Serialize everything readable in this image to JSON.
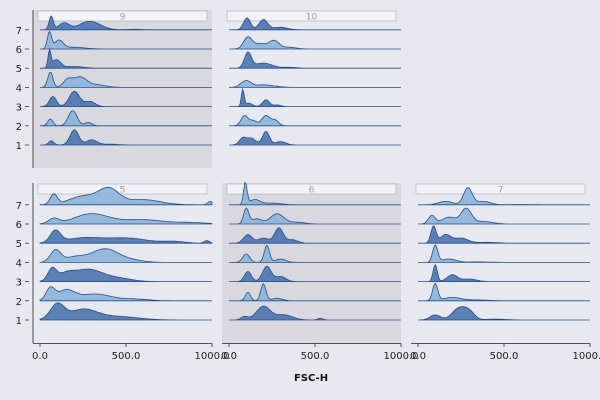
{
  "chart_data": {
    "type": "ridgeline",
    "title": "",
    "xlabel": "FSC-H",
    "ylabel": "",
    "xlim": [
      0,
      1000
    ],
    "x_ticks": [
      "0.0",
      "500.0",
      "1000.0"
    ],
    "y_categories": [
      "1",
      "2",
      "3",
      "4",
      "5",
      "6",
      "7"
    ],
    "fill_colors": {
      "dark": "#4a74b4",
      "light": "#8ab4dc",
      "line": "#1f4e8c"
    },
    "panel_background": {
      "shaded": "#d8d8de",
      "plain": "#e8e8f0"
    },
    "panels": [
      {
        "label": "9",
        "shaded": true,
        "ridges": [
          {
            "row": "1",
            "tone": "dark",
            "peaks": [
              [
                65,
                15,
                0.25
              ],
              [
                200,
                25,
                0.9
              ],
              [
                300,
                30,
                0.3
              ],
              [
                400,
                50,
                0.05
              ]
            ]
          },
          {
            "row": "2",
            "tone": "light",
            "peaks": [
              [
                60,
                15,
                0.4
              ],
              [
                190,
                25,
                0.9
              ],
              [
                280,
                20,
                0.2
              ]
            ]
          },
          {
            "row": "3",
            "tone": "dark",
            "peaks": [
              [
                75,
                20,
                0.6
              ],
              [
                200,
                30,
                0.9
              ],
              [
                290,
                30,
                0.3
              ]
            ]
          },
          {
            "row": "4",
            "tone": "light",
            "peaks": [
              [
                60,
                15,
                0.9
              ],
              [
                160,
                25,
                0.4
              ],
              [
                230,
                40,
                0.6
              ],
              [
                330,
                50,
                0.15
              ]
            ]
          },
          {
            "row": "5",
            "tone": "dark",
            "peaks": [
              [
                55,
                8,
                1.0
              ],
              [
                95,
                25,
                0.5
              ],
              [
                200,
                50,
                0.1
              ]
            ]
          },
          {
            "row": "6",
            "tone": "light",
            "peaks": [
              [
                55,
                12,
                1.0
              ],
              [
                110,
                25,
                0.5
              ],
              [
                200,
                60,
                0.1
              ]
            ]
          },
          {
            "row": "7",
            "tone": "dark",
            "peaks": [
              [
                65,
                12,
                0.8
              ],
              [
                140,
                30,
                0.4
              ],
              [
                290,
                60,
                0.5
              ],
              [
                550,
                40,
                0.03
              ]
            ]
          }
        ]
      },
      {
        "label": "10",
        "shaded": false,
        "ridges": [
          {
            "row": "1",
            "tone": "dark",
            "peaks": [
              [
                80,
                20,
                0.4
              ],
              [
                130,
                25,
                0.4
              ],
              [
                215,
                20,
                0.8
              ],
              [
                300,
                30,
                0.2
              ]
            ]
          },
          {
            "row": "2",
            "tone": "light",
            "peaks": [
              [
                90,
                20,
                0.6
              ],
              [
                140,
                20,
                0.3
              ],
              [
                215,
                25,
                0.6
              ],
              [
                270,
                20,
                0.3
              ]
            ]
          },
          {
            "row": "3",
            "tone": "dark",
            "peaks": [
              [
                80,
                8,
                1.0
              ],
              [
                115,
                20,
                0.2
              ],
              [
                215,
                20,
                0.4
              ],
              [
                280,
                20,
                0.1
              ]
            ]
          },
          {
            "row": "4",
            "tone": "light",
            "peaks": [
              [
                100,
                30,
                0.4
              ],
              [
                200,
                40,
                0.15
              ],
              [
                280,
                30,
                0.05
              ]
            ]
          },
          {
            "row": "5",
            "tone": "dark",
            "peaks": [
              [
                110,
                20,
                0.9
              ],
              [
                200,
                50,
                0.3
              ],
              [
                350,
                40,
                0.05
              ]
            ]
          },
          {
            "row": "6",
            "tone": "light",
            "peaks": [
              [
                110,
                25,
                0.7
              ],
              [
                180,
                30,
                0.3
              ],
              [
                260,
                30,
                0.5
              ],
              [
                350,
                40,
                0.1
              ]
            ]
          },
          {
            "row": "7",
            "tone": "dark",
            "peaks": [
              [
                105,
                20,
                0.7
              ],
              [
                200,
                25,
                0.6
              ],
              [
                300,
                40,
                0.15
              ]
            ]
          }
        ]
      },
      {
        "label": "5",
        "shaded": false,
        "ridges": [
          {
            "row": "1",
            "tone": "dark",
            "peaks": [
              [
                100,
                40,
                0.9
              ],
              [
                250,
                80,
                0.6
              ],
              [
                450,
                120,
                0.2
              ]
            ]
          },
          {
            "row": "2",
            "tone": "light",
            "peaks": [
              [
                60,
                25,
                0.7
              ],
              [
                150,
                50,
                0.6
              ],
              [
                320,
                90,
                0.4
              ],
              [
                550,
                80,
                0.1
              ]
            ]
          },
          {
            "row": "3",
            "tone": "dark",
            "peaks": [
              [
                70,
                25,
                0.7
              ],
              [
                150,
                50,
                0.4
              ],
              [
                280,
                80,
                0.7
              ],
              [
                450,
                80,
                0.2
              ]
            ]
          },
          {
            "row": "4",
            "tone": "light",
            "peaks": [
              [
                90,
                30,
                0.7
              ],
              [
                200,
                60,
                0.3
              ],
              [
                380,
                80,
                0.8
              ],
              [
                550,
                60,
                0.1
              ]
            ]
          },
          {
            "row": "5",
            "tone": "dark",
            "peaks": [
              [
                90,
                30,
                0.7
              ],
              [
                250,
                100,
                0.3
              ],
              [
                500,
                120,
                0.3
              ],
              [
                780,
                60,
                0.1
              ],
              [
                970,
                15,
                0.15
              ]
            ]
          },
          {
            "row": "6",
            "tone": "light",
            "peaks": [
              [
                80,
                30,
                0.3
              ],
              [
                300,
                100,
                0.6
              ],
              [
                600,
                120,
                0.25
              ],
              [
                880,
                80,
                0.08
              ]
            ]
          },
          {
            "row": "7",
            "tone": "light",
            "peaks": [
              [
                80,
                20,
                0.6
              ],
              [
                250,
                80,
                0.5
              ],
              [
                400,
                60,
                0.9
              ],
              [
                600,
                100,
                0.3
              ],
              [
                990,
                15,
                0.2
              ]
            ]
          }
        ]
      },
      {
        "label": "6",
        "shaded": true,
        "ridges": [
          {
            "row": "1",
            "tone": "dark",
            "peaks": [
              [
                90,
                20,
                0.2
              ],
              [
                200,
                40,
                0.8
              ],
              [
                320,
                50,
                0.3
              ],
              [
                530,
                15,
                0.1
              ]
            ]
          },
          {
            "row": "2",
            "tone": "light",
            "peaks": [
              [
                110,
                15,
                0.5
              ],
              [
                200,
                15,
                1.0
              ],
              [
                280,
                30,
                0.15
              ]
            ]
          },
          {
            "row": "3",
            "tone": "dark",
            "peaks": [
              [
                110,
                20,
                0.6
              ],
              [
                220,
                25,
                0.9
              ],
              [
                300,
                30,
                0.3
              ]
            ]
          },
          {
            "row": "4",
            "tone": "light",
            "peaks": [
              [
                100,
                20,
                0.5
              ],
              [
                220,
                15,
                1.0
              ],
              [
                300,
                30,
                0.2
              ]
            ]
          },
          {
            "row": "5",
            "tone": "dark",
            "peaks": [
              [
                110,
                25,
                0.5
              ],
              [
                200,
                30,
                0.3
              ],
              [
                290,
                25,
                0.9
              ],
              [
                370,
                30,
                0.2
              ]
            ]
          },
          {
            "row": "6",
            "tone": "light",
            "peaks": [
              [
                100,
                15,
                0.9
              ],
              [
                160,
                30,
                0.3
              ],
              [
                280,
                40,
                0.6
              ],
              [
                400,
                40,
                0.1
              ]
            ]
          },
          {
            "row": "7",
            "tone": "light",
            "peaks": [
              [
                95,
                10,
                1.3
              ],
              [
                150,
                30,
                0.3
              ],
              [
                250,
                50,
                0.1
              ]
            ]
          }
        ]
      },
      {
        "label": "7",
        "shaded": false,
        "ridges": [
          {
            "row": "1",
            "tone": "dark",
            "peaks": [
              [
                100,
                30,
                0.3
              ],
              [
                240,
                40,
                0.7
              ],
              [
                300,
                30,
                0.4
              ],
              [
                450,
                60,
                0.05
              ]
            ]
          },
          {
            "row": "2",
            "tone": "light",
            "peaks": [
              [
                100,
                15,
                1.0
              ],
              [
                200,
                50,
                0.2
              ],
              [
                350,
                60,
                0.05
              ]
            ]
          },
          {
            "row": "3",
            "tone": "dark",
            "peaks": [
              [
                100,
                12,
                1.0
              ],
              [
                200,
                30,
                0.4
              ],
              [
                300,
                40,
                0.15
              ]
            ]
          },
          {
            "row": "4",
            "tone": "light",
            "peaks": [
              [
                100,
                15,
                1.0
              ],
              [
                180,
                40,
                0.2
              ],
              [
                350,
                60,
                0.03
              ]
            ]
          },
          {
            "row": "5",
            "tone": "dark",
            "peaks": [
              [
                90,
                15,
                1.0
              ],
              [
                160,
                30,
                0.5
              ],
              [
                250,
                40,
                0.3
              ],
              [
                400,
                60,
                0.05
              ]
            ]
          },
          {
            "row": "6",
            "tone": "light",
            "peaks": [
              [
                80,
                20,
                0.5
              ],
              [
                180,
                40,
                0.4
              ],
              [
                280,
                30,
                0.9
              ],
              [
                380,
                50,
                0.15
              ]
            ]
          },
          {
            "row": "7",
            "tone": "light",
            "peaks": [
              [
                160,
                40,
                0.2
              ],
              [
                290,
                25,
                1.0
              ],
              [
                380,
                40,
                0.2
              ],
              [
                600,
                60,
                0.02
              ]
            ]
          }
        ]
      }
    ]
  }
}
